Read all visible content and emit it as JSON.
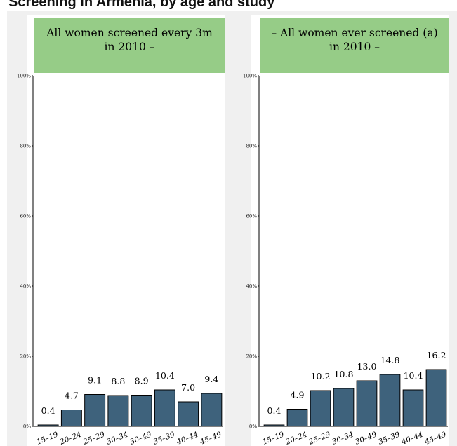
{
  "title": "Screening in Armenia, by age and study",
  "colors": {
    "bar": "#3e627c",
    "strip": "#96cc87",
    "panel_bg": "#ffffff",
    "page_bg": "#f0f0f0"
  },
  "chart_data": [
    {
      "type": "bar",
      "title": "All women screened every 3m in 2010 –",
      "title_lines": [
        "All women screened every 3m",
        "in 2010 –"
      ],
      "categories": [
        "15–19",
        "20–24",
        "25–29",
        "30–34",
        "30–49",
        "35–39",
        "40–44",
        "45–49"
      ],
      "values": [
        0.4,
        4.7,
        9.1,
        8.8,
        8.9,
        10.4,
        7.0,
        9.4
      ],
      "value_labels": [
        "0.4",
        "4.7",
        "9.1",
        "8.8",
        "8.9",
        "10.4",
        "7.0",
        "9.4"
      ],
      "ylim": [
        0,
        100
      ],
      "yticks": [
        "0%",
        "20%",
        "40%",
        "60%",
        "80%",
        "100%"
      ],
      "xlabel": "",
      "ylabel": "",
      "grid": false
    },
    {
      "type": "bar",
      "title": "– All women ever screened (a) in 2010 –",
      "title_lines": [
        "– All women ever screened (a)",
        "in 2010 –"
      ],
      "categories": [
        "15–19",
        "20–24",
        "25–29",
        "30–34",
        "30–49",
        "35–39",
        "40–44",
        "45–49"
      ],
      "values": [
        0.4,
        4.9,
        10.2,
        10.8,
        13.0,
        14.8,
        10.4,
        16.2
      ],
      "value_labels": [
        "0.4",
        "4.9",
        "10.2",
        "10.8",
        "13.0",
        "14.8",
        "10.4",
        "16.2"
      ],
      "ylim": [
        0,
        100
      ],
      "yticks": [
        "0%",
        "20%",
        "40%",
        "60%",
        "80%",
        "100%"
      ],
      "xlabel": "",
      "ylabel": "",
      "grid": false
    }
  ]
}
